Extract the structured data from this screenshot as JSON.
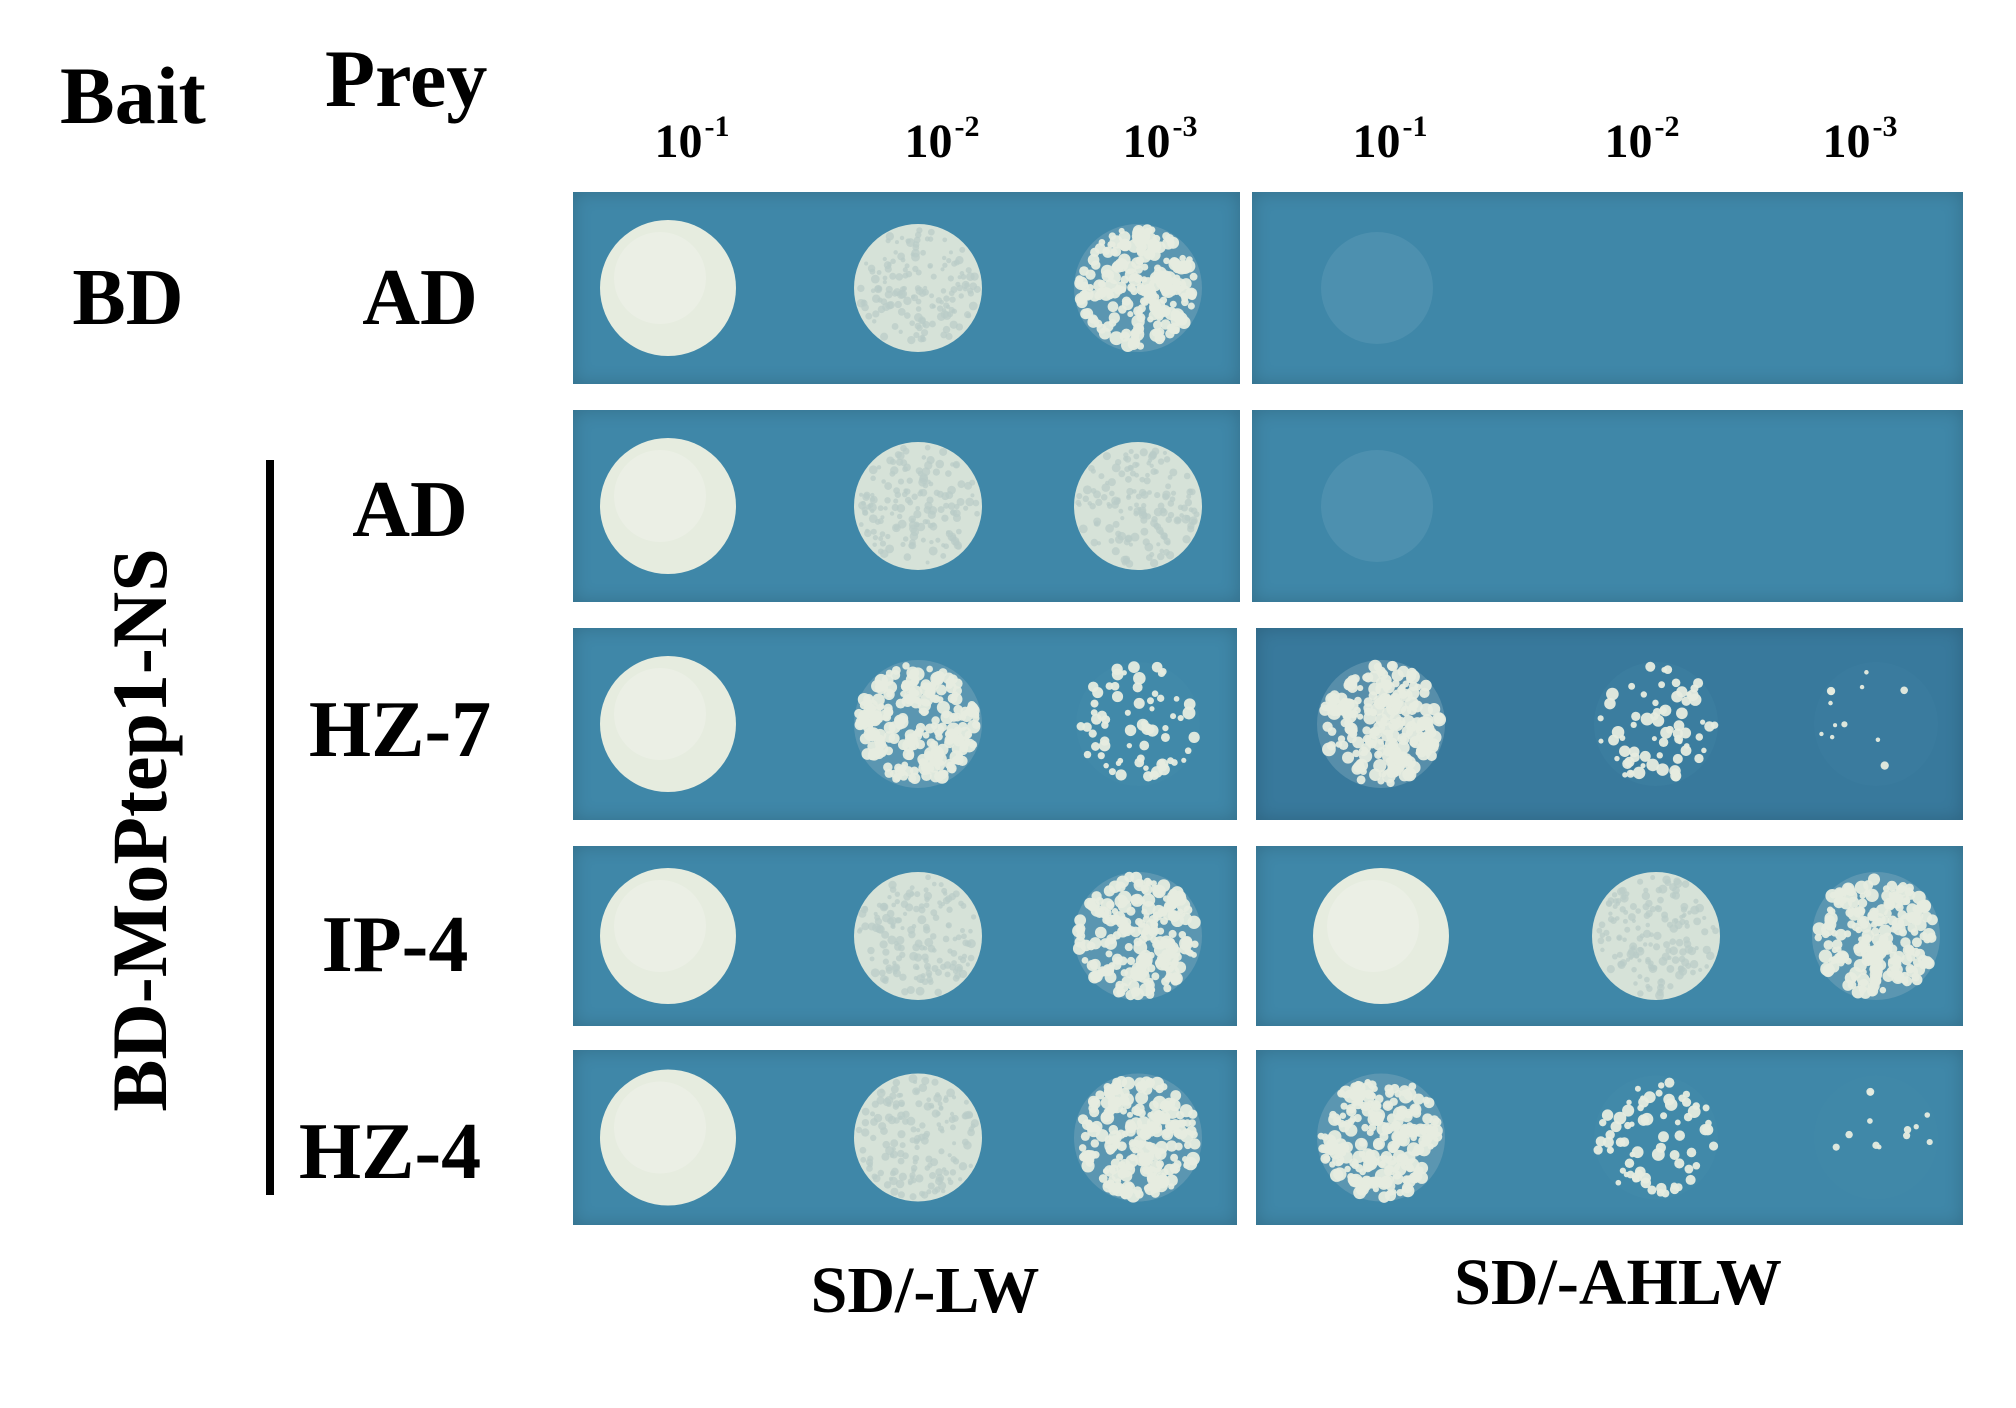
{
  "header": {
    "bait_label": "Bait",
    "prey_label": "Prey"
  },
  "dilutions": {
    "left": [
      {
        "base": "10",
        "exp": "-1"
      },
      {
        "base": "10",
        "exp": "-2"
      },
      {
        "base": "10",
        "exp": "-3"
      }
    ],
    "right": [
      {
        "base": "10",
        "exp": "-1"
      },
      {
        "base": "10",
        "exp": "-2"
      },
      {
        "base": "10",
        "exp": "-3"
      }
    ]
  },
  "rows": [
    {
      "bait": "BD",
      "prey": "AD",
      "left_growth": [
        "confluent",
        "dense",
        "colonies"
      ],
      "right_growth": [
        "trace",
        "none",
        "none"
      ]
    },
    {
      "bait": "",
      "prey": "AD",
      "left_growth": [
        "confluent",
        "dense",
        "dense"
      ],
      "right_growth": [
        "trace",
        "none",
        "none"
      ]
    },
    {
      "bait": "",
      "prey": "HZ-7",
      "left_growth": [
        "confluent",
        "colonies",
        "sparse"
      ],
      "right_growth": [
        "colonies",
        "sparse",
        "few"
      ]
    },
    {
      "bait": "",
      "prey": "IP-4",
      "left_growth": [
        "confluent",
        "dense",
        "colonies"
      ],
      "right_growth": [
        "confluent",
        "dense",
        "colonies"
      ]
    },
    {
      "bait": "",
      "prey": "HZ-4",
      "left_growth": [
        "confluent",
        "dense",
        "colonies"
      ],
      "right_growth": [
        "colonies",
        "sparse",
        "few"
      ]
    }
  ],
  "bait_group": "BD-MoPtep1-NS",
  "media": {
    "left": "SD/-LW",
    "right": "SD/-AHLW"
  },
  "colors": {
    "agar": "#3f87a8",
    "agar_dark": "#38799c",
    "colony": "#e6ecdf"
  }
}
